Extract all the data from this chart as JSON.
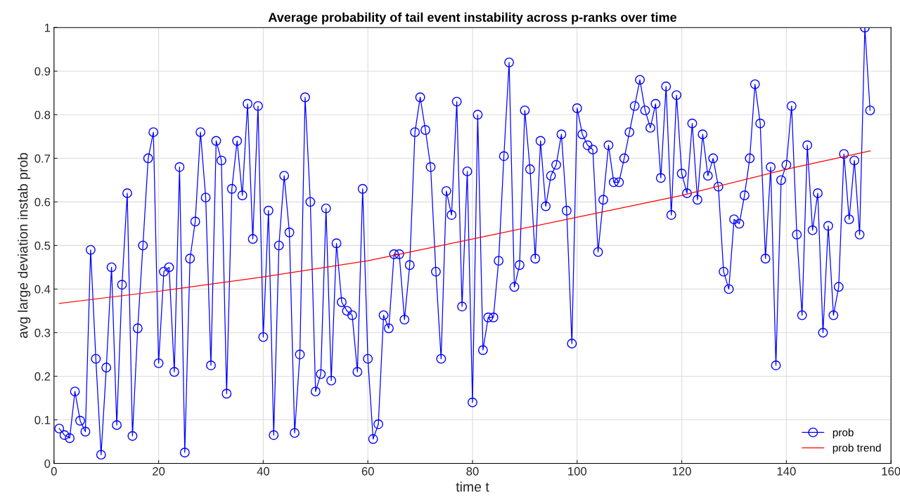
{
  "chart_data": {
    "type": "line",
    "title": "Average probability of tail event instability across p-ranks over time",
    "xlabel": "time t",
    "ylabel": "avg large deviation instab prob",
    "xlim": [
      0,
      160
    ],
    "xticks": [
      0,
      20,
      40,
      60,
      80,
      100,
      120,
      140,
      160
    ],
    "ylim": [
      0,
      1
    ],
    "yticks": [
      0,
      0.1,
      0.2,
      0.3,
      0.4,
      0.5,
      0.6,
      0.7,
      0.8,
      0.9,
      1
    ],
    "grid": true,
    "legend": "bottom right",
    "series": [
      {
        "name": "prob",
        "color": "#0000ff",
        "marker": "circle",
        "x": [
          1,
          2,
          3,
          4,
          5,
          6,
          7,
          8,
          9,
          10,
          11,
          12,
          13,
          14,
          15,
          16,
          17,
          18,
          19,
          20,
          21,
          22,
          23,
          24,
          25,
          26,
          27,
          28,
          29,
          30,
          31,
          32,
          33,
          34,
          35,
          36,
          37,
          38,
          39,
          40,
          41,
          42,
          43,
          44,
          45,
          46,
          47,
          48,
          49,
          50,
          51,
          52,
          53,
          54,
          55,
          56,
          57,
          58,
          59,
          60,
          61,
          62,
          63,
          64,
          65,
          66,
          67,
          68,
          69,
          70,
          71,
          72,
          73,
          74,
          75,
          76,
          77,
          78,
          79,
          80,
          81,
          82,
          83,
          84,
          85,
          86,
          87,
          88,
          89,
          90,
          91,
          92,
          93,
          94,
          95,
          96,
          97,
          98,
          99,
          100,
          101,
          102,
          103,
          104,
          105,
          106,
          107,
          108,
          109,
          110,
          111,
          112,
          113,
          114,
          115,
          116,
          117,
          118,
          119,
          120,
          121,
          122,
          123,
          124,
          125,
          126,
          127,
          128,
          129,
          130,
          131,
          132,
          133,
          134,
          135,
          136,
          137,
          138,
          139,
          140,
          141,
          142,
          143,
          144,
          145,
          146,
          147,
          148,
          149,
          150,
          151,
          152,
          153,
          154,
          155,
          156
        ],
        "values": [
          0.08,
          0.065,
          0.058,
          0.165,
          0.098,
          0.073,
          0.49,
          0.24,
          0.02,
          0.22,
          0.45,
          0.088,
          0.41,
          0.62,
          0.063,
          0.31,
          0.5,
          0.7,
          0.76,
          0.23,
          0.44,
          0.45,
          0.21,
          0.68,
          0.025,
          0.47,
          0.555,
          0.76,
          0.61,
          0.225,
          0.74,
          0.695,
          0.16,
          0.63,
          0.74,
          0.615,
          0.825,
          0.515,
          0.82,
          0.29,
          0.58,
          0.065,
          0.5,
          0.66,
          0.53,
          0.07,
          0.25,
          0.84,
          0.6,
          0.165,
          0.205,
          0.585,
          0.19,
          0.505,
          0.37,
          0.35,
          0.34,
          0.21,
          0.63,
          0.24,
          0.056,
          0.09,
          0.34,
          0.31,
          0.48,
          0.48,
          0.33,
          0.455,
          0.76,
          0.84,
          0.765,
          0.68,
          0.44,
          0.24,
          0.625,
          0.57,
          0.83,
          0.36,
          0.67,
          0.14,
          0.8,
          0.26,
          0.335,
          0.335,
          0.465,
          0.705,
          0.92,
          0.405,
          0.455,
          0.81,
          0.675,
          0.47,
          0.74,
          0.59,
          0.66,
          0.685,
          0.755,
          0.58,
          0.275,
          0.815,
          0.755,
          0.73,
          0.72,
          0.485,
          0.605,
          0.73,
          0.645,
          0.645,
          0.7,
          0.76,
          0.82,
          0.88,
          0.81,
          0.77,
          0.825,
          0.655,
          0.865,
          0.57,
          0.845,
          0.665,
          0.62,
          0.78,
          0.605,
          0.755,
          0.66,
          0.7,
          0.635,
          0.44,
          0.4,
          0.56,
          0.55,
          0.615,
          0.7,
          0.87,
          0.78,
          0.47,
          0.68,
          0.225,
          0.65,
          0.685,
          0.82,
          0.525,
          0.34,
          0.73,
          0.535,
          0.62,
          0.3,
          0.545,
          0.34,
          0.405,
          0.71,
          0.56,
          0.695,
          0.525,
          1.0,
          0.81
        ]
      },
      {
        "name": "prob trend",
        "color": "#ff0000",
        "marker": "none",
        "x": [
          1,
          20,
          40,
          60,
          80,
          100,
          120,
          140,
          156
        ],
        "values": [
          0.367,
          0.395,
          0.428,
          0.465,
          0.515,
          0.565,
          0.615,
          0.675,
          0.717
        ]
      }
    ]
  }
}
